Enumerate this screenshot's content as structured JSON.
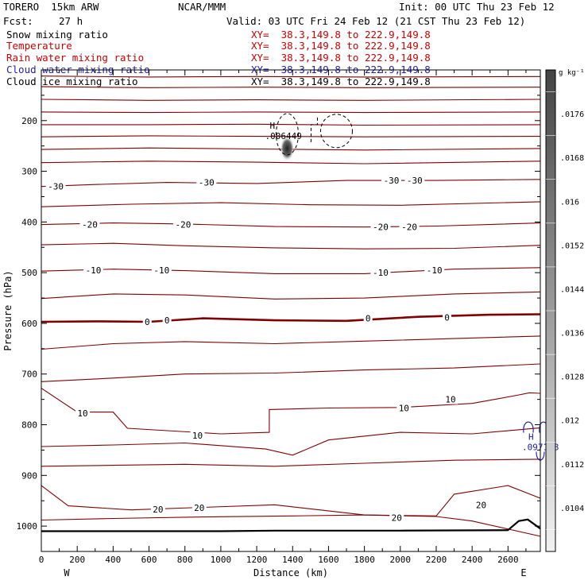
{
  "header": {
    "model": "TORERO  15km ARW",
    "org": "NCAR/MMM",
    "init": "Init: 00 UTC Thu 23 Feb 12",
    "fcst_label": "Fcst:",
    "fcst_value": "27 h",
    "valid": "Valid: 03 UTC Fri 24 Feb 12 (21 CST Thu 23 Feb 12)"
  },
  "fields": [
    {
      "name": "Snow mixing ratio",
      "xy": "XY=  38.3,149.8 to 222.9,149.8",
      "color": "#000000"
    },
    {
      "name": "Temperature",
      "xy": "XY=  38.3,149.8 to 222.9,149.8",
      "color": "#cc0000"
    },
    {
      "name": "Rain water mixing ratio",
      "xy": "XY=  38.3,149.8 to 222.9,149.8",
      "color": "#cc0000"
    },
    {
      "name": "Cloud water mixing ratio",
      "xy": "XY=  38.3,149.8 to 222.9,149.8",
      "color": "#2222aa"
    },
    {
      "name": "Cloud ice mixing ratio",
      "xy": "XY=  38.3,149.8 to 222.9,149.8",
      "color": "#000000"
    }
  ],
  "colors": {
    "isotherm": "#800000",
    "cloud_water": "#1a1aaa",
    "ice": "#000000"
  },
  "chart_data": {
    "type": "line",
    "xlabel": "Distance (km)",
    "ylabel": "Pressure (hPa)",
    "xlim": [
      0,
      2780
    ],
    "ylim": [
      1050,
      100
    ],
    "x_ticks": [
      0,
      200,
      400,
      600,
      800,
      1000,
      1200,
      1400,
      1600,
      1800,
      2000,
      2200,
      2400,
      2600
    ],
    "y_ticks": [
      200,
      300,
      400,
      500,
      600,
      700,
      800,
      900,
      1000
    ],
    "west_label": "W",
    "east_label": "E",
    "isotherm_labels": [
      {
        "text": "-30",
        "x": 80,
        "p": 330
      },
      {
        "text": "-30",
        "x": 920,
        "p": 322
      },
      {
        "text": "-30",
        "x": 1950,
        "p": 318
      },
      {
        "text": "-30",
        "x": 2080,
        "p": 318
      },
      {
        "text": "-20",
        "x": 270,
        "p": 405
      },
      {
        "text": "-20",
        "x": 790,
        "p": 405
      },
      {
        "text": "-20",
        "x": 1890,
        "p": 410
      },
      {
        "text": "-20",
        "x": 2050,
        "p": 410
      },
      {
        "text": "-10",
        "x": 290,
        "p": 495
      },
      {
        "text": "-10",
        "x": 670,
        "p": 495
      },
      {
        "text": "-10",
        "x": 1890,
        "p": 500
      },
      {
        "text": "-10",
        "x": 2190,
        "p": 495
      },
      {
        "text": "0",
        "x": 590,
        "p": 597
      },
      {
        "text": "0",
        "x": 700,
        "p": 594
      },
      {
        "text": "0",
        "x": 1820,
        "p": 590
      },
      {
        "text": "0",
        "x": 2260,
        "p": 588
      },
      {
        "text": "10",
        "x": 230,
        "p": 777
      },
      {
        "text": "10",
        "x": 870,
        "p": 821
      },
      {
        "text": "10",
        "x": 2020,
        "p": 767
      },
      {
        "text": "10",
        "x": 2280,
        "p": 750
      },
      {
        "text": "20",
        "x": 650,
        "p": 967
      },
      {
        "text": "20",
        "x": 880,
        "p": 964
      },
      {
        "text": "20",
        "x": 1980,
        "p": 983
      },
      {
        "text": "20",
        "x": 2450,
        "p": 958
      }
    ],
    "isotherms": [
      {
        "name": "",
        "points": [
          [
            0,
            112
          ],
          [
            600,
            114
          ],
          [
            1200,
            113
          ],
          [
            1800,
            114
          ],
          [
            2780,
            113
          ]
        ]
      },
      {
        "name": "",
        "points": [
          [
            0,
            133
          ],
          [
            600,
            135
          ],
          [
            1200,
            134
          ],
          [
            1800,
            135
          ],
          [
            2780,
            134
          ]
        ]
      },
      {
        "name": "",
        "points": [
          [
            0,
            158
          ],
          [
            600,
            160
          ],
          [
            1200,
            159
          ],
          [
            1800,
            160
          ],
          [
            2780,
            158
          ]
        ]
      },
      {
        "name": "",
        "points": [
          [
            0,
            183
          ],
          [
            600,
            184
          ],
          [
            1200,
            183
          ],
          [
            1800,
            184
          ],
          [
            2780,
            183
          ]
        ]
      },
      {
        "name": "",
        "points": [
          [
            0,
            208
          ],
          [
            600,
            208
          ],
          [
            1200,
            207
          ],
          [
            1800,
            209
          ],
          [
            2780,
            208
          ]
        ]
      },
      {
        "name": "",
        "points": [
          [
            0,
            232
          ],
          [
            600,
            230
          ],
          [
            1200,
            231
          ],
          [
            1800,
            232
          ],
          [
            2780,
            231
          ]
        ]
      },
      {
        "name": "",
        "points": [
          [
            0,
            257
          ],
          [
            600,
            254
          ],
          [
            1200,
            256
          ],
          [
            1800,
            258
          ],
          [
            2780,
            255
          ]
        ]
      },
      {
        "name": "",
        "points": [
          [
            0,
            283
          ],
          [
            600,
            280
          ],
          [
            1200,
            282
          ],
          [
            1800,
            285
          ],
          [
            2780,
            280
          ]
        ]
      },
      {
        "name": "-30",
        "points": [
          [
            0,
            330
          ],
          [
            300,
            326
          ],
          [
            700,
            322
          ],
          [
            1200,
            324
          ],
          [
            1700,
            318
          ],
          [
            2200,
            318
          ],
          [
            2780,
            316
          ]
        ]
      },
      {
        "name": "",
        "points": [
          [
            0,
            370
          ],
          [
            500,
            365
          ],
          [
            1000,
            362
          ],
          [
            1500,
            366
          ],
          [
            2000,
            367
          ],
          [
            2780,
            360
          ]
        ]
      },
      {
        "name": "-20",
        "points": [
          [
            0,
            405
          ],
          [
            400,
            402
          ],
          [
            800,
            404
          ],
          [
            1300,
            409
          ],
          [
            1800,
            410
          ],
          [
            2200,
            408
          ],
          [
            2780,
            402
          ]
        ]
      },
      {
        "name": "",
        "points": [
          [
            0,
            445
          ],
          [
            400,
            442
          ],
          [
            800,
            447
          ],
          [
            1300,
            451
          ],
          [
            1800,
            453
          ],
          [
            2300,
            452
          ],
          [
            2780,
            446
          ]
        ]
      },
      {
        "name": "-10",
        "points": [
          [
            0,
            497
          ],
          [
            400,
            493
          ],
          [
            800,
            496
          ],
          [
            1300,
            502
          ],
          [
            1800,
            502
          ],
          [
            2300,
            493
          ],
          [
            2780,
            490
          ]
        ]
      },
      {
        "name": "",
        "points": [
          [
            0,
            551
          ],
          [
            400,
            542
          ],
          [
            800,
            544
          ],
          [
            1300,
            552
          ],
          [
            1800,
            550
          ],
          [
            2300,
            542
          ],
          [
            2780,
            538
          ]
        ]
      },
      {
        "name": "0",
        "points": [
          [
            0,
            597
          ],
          [
            300,
            596
          ],
          [
            600,
            597
          ],
          [
            900,
            590
          ],
          [
            1300,
            594
          ],
          [
            1700,
            595
          ],
          [
            2100,
            587
          ],
          [
            2500,
            583
          ],
          [
            2780,
            582
          ]
        ]
      },
      {
        "name": "",
        "points": [
          [
            0,
            651
          ],
          [
            400,
            640
          ],
          [
            800,
            636
          ],
          [
            1300,
            640
          ],
          [
            1800,
            635
          ],
          [
            2300,
            630
          ],
          [
            2780,
            625
          ]
        ]
      },
      {
        "name": "",
        "points": [
          [
            0,
            715
          ],
          [
            400,
            708
          ],
          [
            800,
            700
          ],
          [
            1300,
            698
          ],
          [
            1800,
            692
          ],
          [
            2300,
            688
          ],
          [
            2780,
            680
          ]
        ]
      },
      {
        "name": "10",
        "points": [
          [
            0,
            728
          ],
          [
            200,
            775
          ],
          [
            400,
            775
          ],
          [
            480,
            807
          ],
          [
            1000,
            818
          ],
          [
            1270,
            815
          ],
          [
            1270,
            770
          ],
          [
            1600,
            767
          ],
          [
            2000,
            766
          ],
          [
            2400,
            758
          ],
          [
            2650,
            742
          ],
          [
            2720,
            737
          ],
          [
            2780,
            738
          ]
        ]
      },
      {
        "name": "",
        "points": [
          [
            0,
            843
          ],
          [
            400,
            840
          ],
          [
            800,
            836
          ],
          [
            1250,
            848
          ],
          [
            1400,
            860
          ],
          [
            1600,
            830
          ],
          [
            2000,
            815
          ],
          [
            2400,
            818
          ],
          [
            2780,
            806
          ]
        ]
      },
      {
        "name": "",
        "points": [
          [
            0,
            882
          ],
          [
            400,
            880
          ],
          [
            800,
            878
          ],
          [
            1300,
            882
          ],
          [
            1800,
            876
          ],
          [
            2300,
            870
          ],
          [
            2780,
            868
          ]
        ]
      },
      {
        "name": "20",
        "points": [
          [
            0,
            920
          ],
          [
            150,
            960
          ],
          [
            500,
            968
          ],
          [
            900,
            963
          ],
          [
            1300,
            958
          ],
          [
            1800,
            978
          ],
          [
            2200,
            980
          ],
          [
            2300,
            937
          ],
          [
            2600,
            920
          ],
          [
            2780,
            945
          ]
        ]
      },
      {
        "name": "",
        "points": [
          [
            0,
            988
          ],
          [
            400,
            985
          ],
          [
            900,
            982
          ],
          [
            1400,
            980
          ],
          [
            1800,
            978
          ],
          [
            2200,
            981
          ],
          [
            2400,
            990
          ],
          [
            2780,
            1020
          ]
        ]
      }
    ],
    "terrain": {
      "name": "",
      "points": [
        [
          0,
          1010
        ],
        [
          1000,
          1010
        ],
        [
          1300,
          1009
        ],
        [
          2000,
          1009
        ],
        [
          2600,
          1008
        ],
        [
          2660,
          990
        ],
        [
          2710,
          987
        ],
        [
          2780,
          1005
        ]
      ]
    },
    "cloud_ice": {
      "label": ".006449",
      "high": "H",
      "x": 1370,
      "p": 255
    },
    "cloud_water": {
      "label": ".097148",
      "high": "H",
      "x": 2740,
      "p": 822
    },
    "snow_colorbar": {
      "unit": "g kg⁻¹",
      "ticks": [
        ".0176",
        ".0168",
        ".016",
        ".0152",
        ".0144",
        ".0136",
        ".0128",
        ".012",
        ".0112",
        ".0104"
      ]
    }
  }
}
